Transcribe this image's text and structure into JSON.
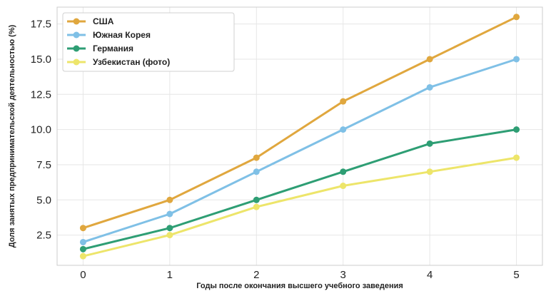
{
  "chart_data": {
    "type": "line",
    "title": "",
    "xlabel": "Годы после окончания высшего учебного заведения",
    "ylabel": "Доля занятых предпринимательской деятельностью (%)",
    "x": [
      0,
      1,
      2,
      3,
      4,
      5
    ],
    "x_tick_labels": [
      "0",
      "1",
      "2",
      "3",
      "4",
      "5"
    ],
    "y_tick_labels": [
      "2.5",
      "5.0",
      "7.5",
      "10.0",
      "12.5",
      "15.0",
      "17.5"
    ],
    "y_ticks": [
      2.5,
      5.0,
      7.5,
      10.0,
      12.5,
      15.0,
      17.5
    ],
    "xlim": [
      -0.3,
      5.3
    ],
    "ylim": [
      0.35,
      18.7
    ],
    "grid": true,
    "legend_position": "top-left",
    "series": [
      {
        "name": "США",
        "color": "#E0A73E",
        "values": [
          3,
          5,
          8,
          12,
          15,
          18
        ]
      },
      {
        "name": "Южная Корея",
        "color": "#7FC0E6",
        "values": [
          2,
          4,
          7,
          10,
          13,
          15
        ]
      },
      {
        "name": "Германия",
        "color": "#2E9E74",
        "values": [
          1.5,
          3,
          5,
          7,
          9,
          10
        ]
      },
      {
        "name": "Узбекистан (фото)",
        "color": "#EDE56A",
        "values": [
          1,
          2.5,
          4.5,
          6,
          7,
          8
        ]
      }
    ]
  }
}
